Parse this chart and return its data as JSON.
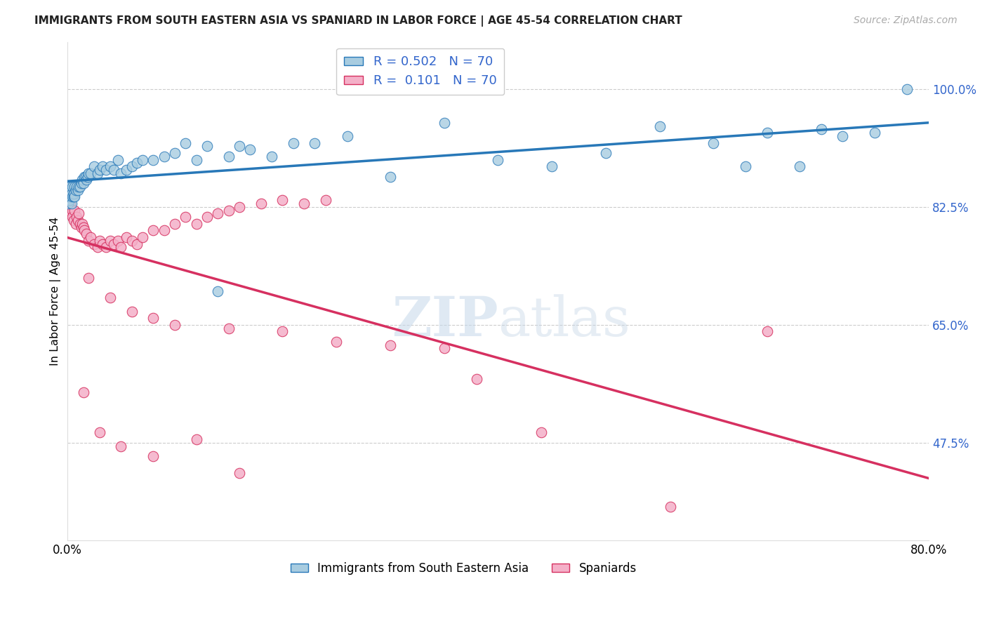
{
  "title": "IMMIGRANTS FROM SOUTH EASTERN ASIA VS SPANIARD IN LABOR FORCE | AGE 45-54 CORRELATION CHART",
  "source": "Source: ZipAtlas.com",
  "ylabel": "In Labor Force | Age 45-54",
  "y_tick_labels": [
    "47.5%",
    "65.0%",
    "82.5%",
    "100.0%"
  ],
  "y_tick_values": [
    0.475,
    0.65,
    0.825,
    1.0
  ],
  "xlim": [
    0.0,
    0.8
  ],
  "ylim": [
    0.33,
    1.07
  ],
  "blue_R": 0.502,
  "blue_N": 70,
  "pink_R": 0.101,
  "pink_N": 70,
  "blue_color": "#a8cce0",
  "pink_color": "#f4b0c8",
  "blue_line_color": "#2878b8",
  "pink_line_color": "#d63060",
  "legend_label_blue": "Immigrants from South Eastern Asia",
  "legend_label_pink": "Spaniards",
  "blue_scatter_x": [
    0.0,
    0.001,
    0.001,
    0.002,
    0.002,
    0.003,
    0.003,
    0.004,
    0.004,
    0.005,
    0.005,
    0.006,
    0.006,
    0.007,
    0.007,
    0.008,
    0.009,
    0.01,
    0.011,
    0.012,
    0.013,
    0.014,
    0.015,
    0.016,
    0.017,
    0.018,
    0.019,
    0.02,
    0.022,
    0.025,
    0.028,
    0.03,
    0.033,
    0.036,
    0.04,
    0.043,
    0.047,
    0.05,
    0.055,
    0.06,
    0.065,
    0.07,
    0.08,
    0.09,
    0.1,
    0.11,
    0.12,
    0.13,
    0.14,
    0.15,
    0.16,
    0.17,
    0.19,
    0.21,
    0.23,
    0.26,
    0.3,
    0.35,
    0.4,
    0.45,
    0.5,
    0.55,
    0.6,
    0.63,
    0.65,
    0.68,
    0.7,
    0.72,
    0.75,
    0.78
  ],
  "blue_scatter_y": [
    0.84,
    0.845,
    0.83,
    0.85,
    0.835,
    0.84,
    0.855,
    0.83,
    0.845,
    0.84,
    0.855,
    0.84,
    0.845,
    0.855,
    0.84,
    0.85,
    0.855,
    0.85,
    0.855,
    0.855,
    0.86,
    0.865,
    0.86,
    0.87,
    0.87,
    0.865,
    0.87,
    0.875,
    0.875,
    0.885,
    0.875,
    0.88,
    0.885,
    0.88,
    0.885,
    0.88,
    0.895,
    0.875,
    0.88,
    0.885,
    0.89,
    0.895,
    0.895,
    0.9,
    0.905,
    0.92,
    0.895,
    0.915,
    0.7,
    0.9,
    0.915,
    0.91,
    0.9,
    0.92,
    0.92,
    0.93,
    0.87,
    0.95,
    0.895,
    0.885,
    0.905,
    0.945,
    0.92,
    0.885,
    0.935,
    0.885,
    0.94,
    0.93,
    0.935,
    1.0
  ],
  "pink_scatter_x": [
    0.0,
    0.001,
    0.001,
    0.002,
    0.002,
    0.003,
    0.003,
    0.004,
    0.005,
    0.005,
    0.006,
    0.007,
    0.008,
    0.009,
    0.01,
    0.011,
    0.012,
    0.013,
    0.014,
    0.015,
    0.016,
    0.018,
    0.02,
    0.022,
    0.025,
    0.028,
    0.03,
    0.033,
    0.036,
    0.04,
    0.043,
    0.047,
    0.05,
    0.055,
    0.06,
    0.065,
    0.07,
    0.08,
    0.09,
    0.1,
    0.11,
    0.12,
    0.13,
    0.14,
    0.15,
    0.16,
    0.18,
    0.2,
    0.22,
    0.24,
    0.02,
    0.04,
    0.06,
    0.08,
    0.1,
    0.15,
    0.2,
    0.25,
    0.3,
    0.35,
    0.015,
    0.03,
    0.05,
    0.08,
    0.12,
    0.16,
    0.38,
    0.44,
    0.56,
    0.65
  ],
  "pink_scatter_y": [
    0.84,
    0.845,
    0.83,
    0.835,
    0.825,
    0.82,
    0.83,
    0.815,
    0.82,
    0.81,
    0.805,
    0.82,
    0.8,
    0.81,
    0.805,
    0.815,
    0.8,
    0.795,
    0.8,
    0.795,
    0.79,
    0.785,
    0.775,
    0.78,
    0.77,
    0.765,
    0.775,
    0.77,
    0.765,
    0.775,
    0.77,
    0.775,
    0.765,
    0.78,
    0.775,
    0.77,
    0.78,
    0.79,
    0.79,
    0.8,
    0.81,
    0.8,
    0.81,
    0.815,
    0.82,
    0.825,
    0.83,
    0.835,
    0.83,
    0.835,
    0.72,
    0.69,
    0.67,
    0.66,
    0.65,
    0.645,
    0.64,
    0.625,
    0.62,
    0.615,
    0.55,
    0.49,
    0.47,
    0.455,
    0.48,
    0.43,
    0.57,
    0.49,
    0.38,
    0.64
  ]
}
